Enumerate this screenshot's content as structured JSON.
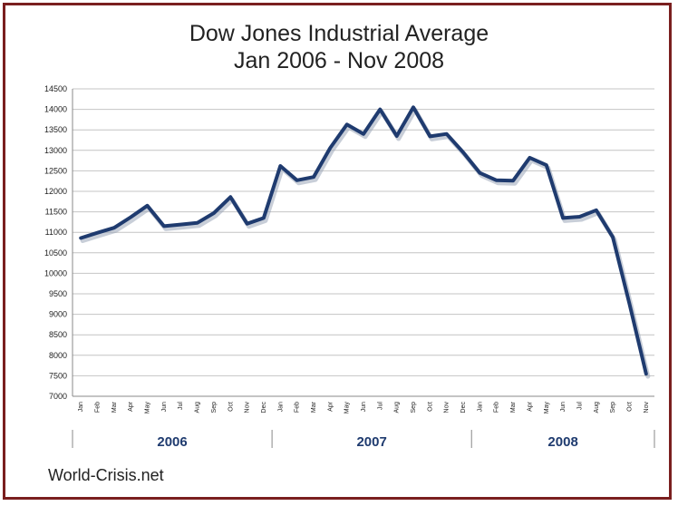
{
  "chart_data": {
    "type": "line",
    "title": "Dow Jones Industrial Average",
    "subtitle": "Jan 2006 - Nov 2008",
    "xlabel": "",
    "ylabel": "",
    "ylim": [
      7000,
      14500
    ],
    "yticks": [
      7000,
      7500,
      8000,
      8500,
      9000,
      9500,
      10000,
      10500,
      11000,
      11500,
      12000,
      12500,
      13000,
      13500,
      14000,
      14500
    ],
    "grid": true,
    "legend": "none",
    "line_color": "#1f3b6f",
    "categories": [
      "Jan",
      "Feb",
      "Mar",
      "Apr",
      "May",
      "Jun",
      "Jul",
      "Aug",
      "Sep",
      "Oct",
      "Nov",
      "Dec",
      "Jan",
      "Feb",
      "Mar",
      "Apr",
      "May",
      "Jun",
      "Jul",
      "Aug",
      "Sep",
      "Oct",
      "Nov",
      "Dec",
      "Jan",
      "Feb",
      "Mar",
      "Apr",
      "May",
      "Jun",
      "Jul",
      "Aug",
      "Sep",
      "Oct",
      "Nov"
    ],
    "years": [
      {
        "label": "2006",
        "start": 0,
        "end": 11
      },
      {
        "label": "2007",
        "start": 12,
        "end": 23
      },
      {
        "label": "2008",
        "start": 24,
        "end": 34
      }
    ],
    "series": [
      {
        "values": [
          10860,
          10990,
          11110,
          11370,
          11650,
          11150,
          11190,
          11230,
          11470,
          11860,
          11210,
          11350,
          12620,
          12270,
          12350,
          13060,
          13630,
          13400,
          14000,
          13350,
          14050,
          13340,
          13400,
          12950,
          12450,
          12270,
          12260,
          12820,
          12640,
          11350,
          11380,
          11540,
          10880,
          9250,
          7550
        ]
      }
    ]
  },
  "credit": "World-Crisis.net"
}
